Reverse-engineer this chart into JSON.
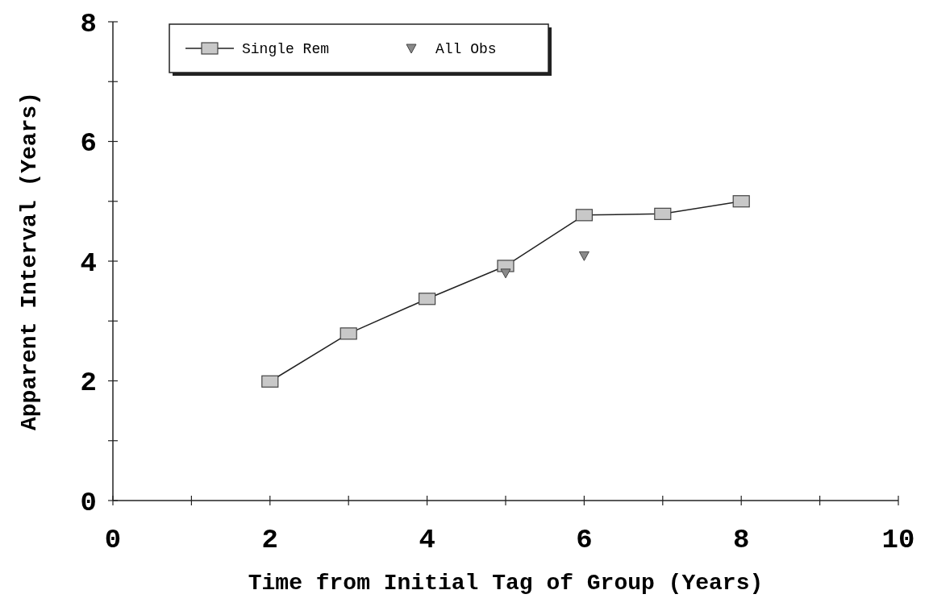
{
  "chart_data": {
    "type": "line",
    "xlabel": "Time from Initial Tag of Group (Years)",
    "ylabel": "Apparent Interval (Years)",
    "xlim": [
      0,
      10
    ],
    "ylim": [
      0,
      8
    ],
    "xticks": [
      0,
      {
        "value": 1,
        "label": null
      },
      2,
      {
        "value": 3,
        "label": null
      },
      4,
      {
        "value": 5,
        "label": null
      },
      6,
      {
        "value": 7,
        "label": null
      },
      8,
      {
        "value": 9,
        "label": null
      },
      10
    ],
    "yticks": [
      0,
      {
        "value": 1,
        "label": null
      },
      2,
      {
        "value": 3,
        "label": null
      },
      4,
      {
        "value": 5,
        "label": null
      },
      6,
      {
        "value": 7,
        "label": null
      },
      8
    ],
    "grid": false,
    "legend": "top left",
    "series": [
      {
        "name": "Single Rem",
        "marker": "square",
        "color": "#c8c8c8",
        "x": [
          2,
          3,
          4,
          5,
          6,
          7,
          8
        ],
        "values": [
          1.99,
          2.79,
          3.37,
          3.92,
          4.77,
          4.79,
          5.0
        ]
      },
      {
        "name": "All Obs",
        "type": "scatter",
        "marker": "triangle",
        "color": "#8a8a8a",
        "x": [
          5,
          6
        ],
        "values": [
          3.8,
          4.09
        ]
      }
    ]
  }
}
